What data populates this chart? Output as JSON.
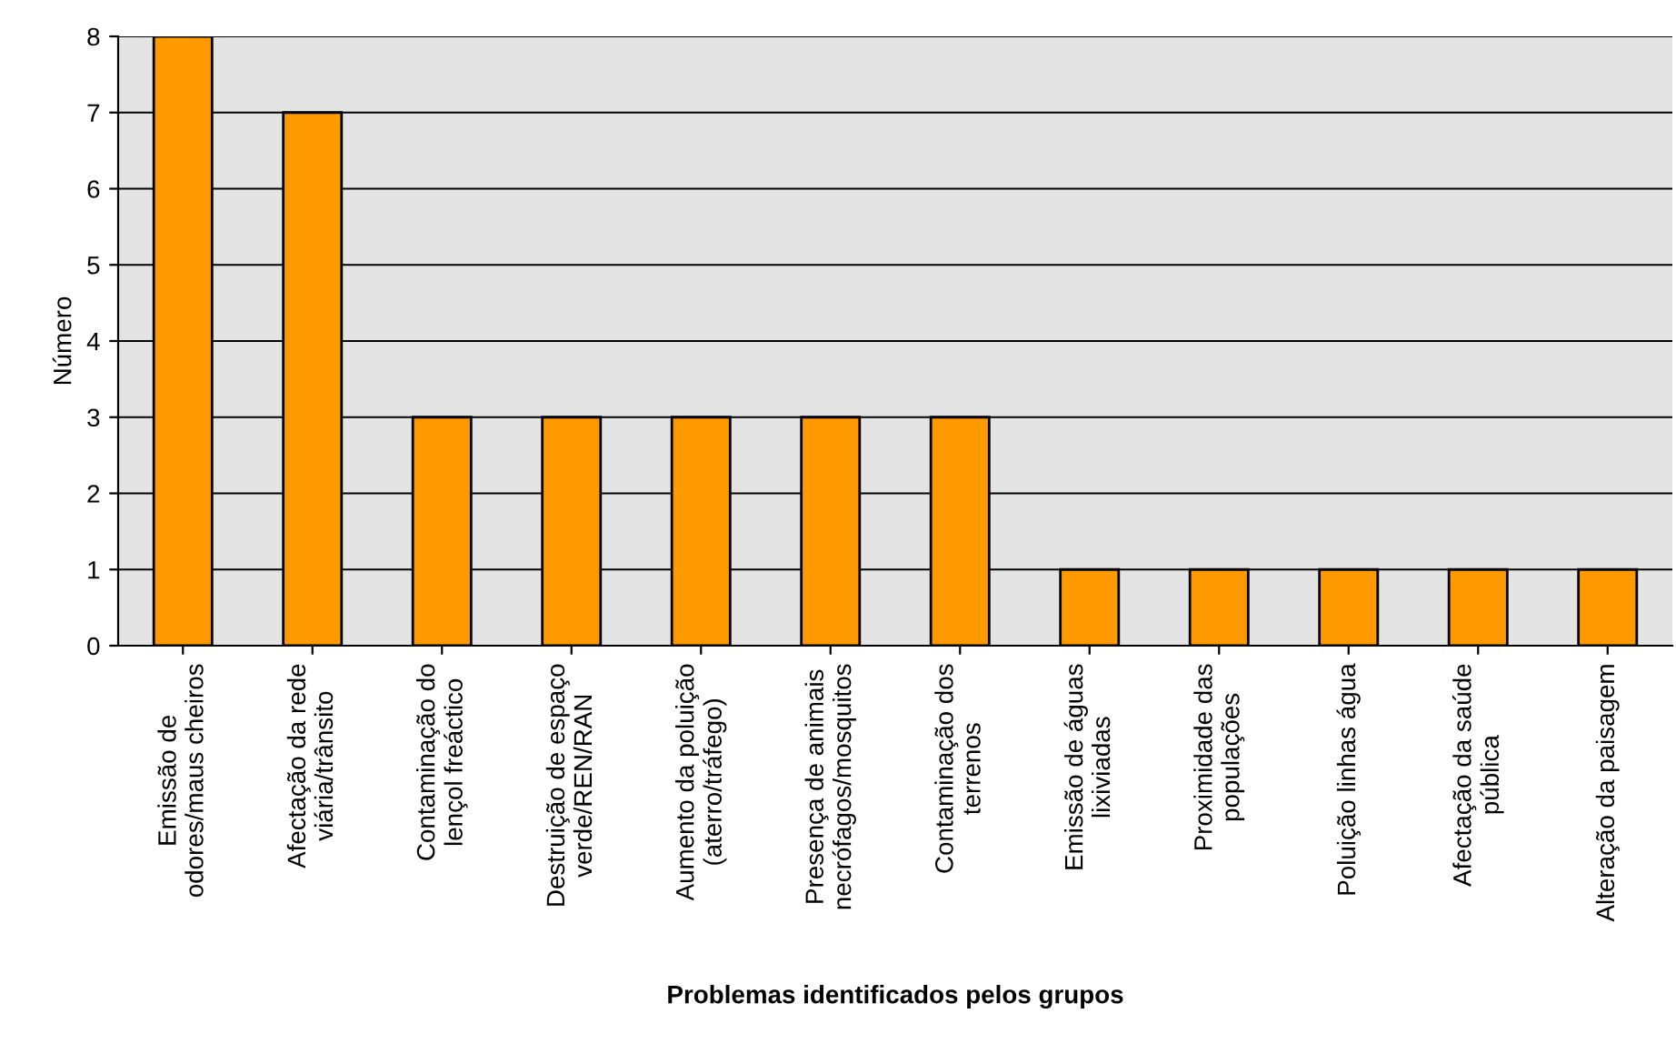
{
  "chart_data": {
    "type": "bar",
    "xlabel": "Problemas identificados pelos grupos",
    "ylabel": "Número",
    "categories": [
      "Emissão de\nodores/maus cheiros",
      "Afectação da rede\nviária/trânsito",
      "Contaminação do\nlençol freáctico",
      "Destruição de espaço\nverde/REN/RAN",
      "Aumento da poluição\n(aterro/tráfego)",
      "Presença de animais\nnecrófagos/mosquitos",
      "Contaminação dos\nterrenos",
      "Emissão de águas\nlixiviadas",
      "Proximidade das\npopulações",
      "Poluição linhas água",
      "Afectação da saúde\npública",
      "Alteração da paisagem"
    ],
    "values": [
      8,
      7,
      3,
      3,
      3,
      3,
      3,
      1,
      1,
      1,
      1,
      1
    ],
    "color": "#ff9900",
    "ylim": [
      0,
      8
    ],
    "yticks": [
      0,
      1,
      2,
      3,
      4,
      5,
      6,
      7,
      8
    ],
    "grid": "y",
    "legend": false
  }
}
